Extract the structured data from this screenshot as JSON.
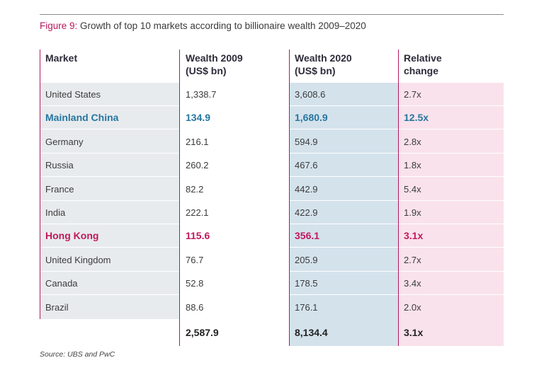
{
  "caption": {
    "figure_label": "Figure 9:",
    "title": "Growth of top 10 markets according to billionaire wealth 2009–2020"
  },
  "table": {
    "headers": [
      [
        "Market",
        ""
      ],
      [
        "Wealth 2009",
        "(US$ bn)"
      ],
      [
        "Wealth 2020",
        "(US$ bn)"
      ],
      [
        "Relative",
        "change"
      ]
    ],
    "rows": [
      [
        "United States",
        "1,338.7",
        "3,608.6",
        "2.7x"
      ],
      [
        "Mainland China",
        "134.9",
        "1,680.9",
        "12.5x"
      ],
      [
        "Germany",
        "216.1",
        "594.9",
        "2.8x"
      ],
      [
        "Russia",
        "260.2",
        "467.6",
        "1.8x"
      ],
      [
        "France",
        "82.2",
        "442.9",
        "5.4x"
      ],
      [
        "India",
        "222.1",
        "422.9",
        "1.9x"
      ],
      [
        "Hong Kong",
        "115.6",
        "356.1",
        "3.1x"
      ],
      [
        "United Kingdom",
        "76.7",
        "205.9",
        "2.7x"
      ],
      [
        "Canada",
        "52.8",
        "178.5",
        "3.4x"
      ],
      [
        "Brazil",
        "88.6",
        "176.1",
        "2.0x"
      ]
    ],
    "total": [
      "",
      "2,587.9",
      "8,134.4",
      "3.1x"
    ]
  },
  "source": "Source: UBS and PwC",
  "colors": {
    "accent_magenta": "#b5195e",
    "highlight_blue": "#2776a0",
    "highlight_pink": "#c2185b",
    "market_col_bg": "#e8ebee",
    "wealth2020_col_bg": "#d4e2ec",
    "relative_col_bg": "#f9e2eb"
  }
}
